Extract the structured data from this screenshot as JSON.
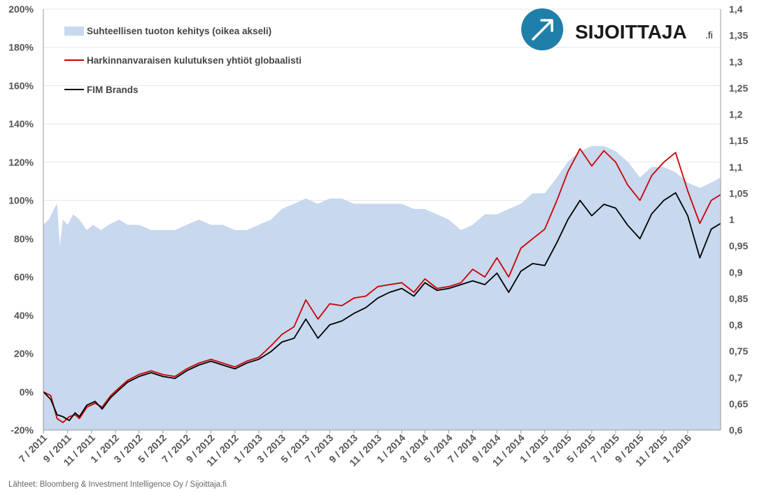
{
  "chart_data": {
    "type": "line",
    "title": "",
    "xlabel": "",
    "ylabel_left": "",
    "ylabel_right": "",
    "left_axis": {
      "min": -20,
      "max": 200,
      "step": 20,
      "tick_labels": [
        "-20%",
        "0%",
        "20%",
        "40%",
        "60%",
        "80%",
        "100%",
        "120%",
        "140%",
        "160%",
        "180%",
        "200%"
      ]
    },
    "right_axis": {
      "min": 0.6,
      "max": 1.4,
      "step": 0.05,
      "tick_labels": [
        "0,6",
        "0,65",
        "0,7",
        "0,75",
        "0,8",
        "0,85",
        "0,9",
        "0,95",
        "1",
        "1,05",
        "1,1",
        "1,15",
        "1,2",
        "1,25",
        "1,3",
        "1,35",
        "1,4"
      ]
    },
    "x_range": [
      "2011-07-01",
      "2016-03-25"
    ],
    "x_tick_labels": [
      "7 / 2011",
      "9 / 2011",
      "11 / 2011",
      "1 / 2012",
      "3 / 2012",
      "5 / 2012",
      "7 / 2012",
      "9 / 2012",
      "11 / 2012",
      "1 / 2013",
      "3 / 2013",
      "5 / 2013",
      "7 / 2013",
      "9 / 2013",
      "11 / 2013",
      "1 / 2014",
      "3 / 2014",
      "5 / 2014",
      "7 / 2014",
      "9 / 2014",
      "11 / 2014",
      "1 / 2015",
      "3 / 2015",
      "5 / 2015",
      "7 / 2015",
      "9 / 2015",
      "11 / 2015",
      "1 / 2016"
    ],
    "grid": true,
    "legend_position": "top-left",
    "series": [
      {
        "name": "Suhteellisen tuoton kehitys (oikea akseli)",
        "kind": "area",
        "axis": "right",
        "color": "#c8d8ee",
        "points": [
          [
            "2011-07-01",
            0.99
          ],
          [
            "2011-07-15",
            1.0
          ],
          [
            "2011-07-28",
            1.02
          ],
          [
            "2011-08-05",
            1.03
          ],
          [
            "2011-08-12",
            0.95
          ],
          [
            "2011-08-20",
            1.0
          ],
          [
            "2011-09-01",
            0.99
          ],
          [
            "2011-09-15",
            1.01
          ],
          [
            "2011-10-01",
            1.0
          ],
          [
            "2011-10-20",
            0.98
          ],
          [
            "2011-11-05",
            0.99
          ],
          [
            "2011-11-25",
            0.98
          ],
          [
            "2011-12-15",
            0.99
          ],
          [
            "2012-01-10",
            1.0
          ],
          [
            "2012-02-01",
            0.99
          ],
          [
            "2012-03-01",
            0.99
          ],
          [
            "2012-04-01",
            0.98
          ],
          [
            "2012-05-01",
            0.98
          ],
          [
            "2012-06-01",
            0.98
          ],
          [
            "2012-07-01",
            0.99
          ],
          [
            "2012-08-01",
            1.0
          ],
          [
            "2012-09-01",
            0.99
          ],
          [
            "2012-10-01",
            0.99
          ],
          [
            "2012-11-01",
            0.98
          ],
          [
            "2012-12-01",
            0.98
          ],
          [
            "2013-01-01",
            0.99
          ],
          [
            "2013-02-01",
            1.0
          ],
          [
            "2013-03-01",
            1.02
          ],
          [
            "2013-04-01",
            1.03
          ],
          [
            "2013-05-01",
            1.04
          ],
          [
            "2013-06-01",
            1.03
          ],
          [
            "2013-07-01",
            1.04
          ],
          [
            "2013-08-01",
            1.04
          ],
          [
            "2013-09-01",
            1.03
          ],
          [
            "2013-10-01",
            1.03
          ],
          [
            "2013-11-01",
            1.03
          ],
          [
            "2013-12-01",
            1.03
          ],
          [
            "2014-01-01",
            1.03
          ],
          [
            "2014-02-01",
            1.02
          ],
          [
            "2014-03-01",
            1.02
          ],
          [
            "2014-04-01",
            1.01
          ],
          [
            "2014-05-01",
            1.0
          ],
          [
            "2014-06-01",
            0.98
          ],
          [
            "2014-07-01",
            0.99
          ],
          [
            "2014-08-01",
            1.01
          ],
          [
            "2014-09-01",
            1.01
          ],
          [
            "2014-10-01",
            1.02
          ],
          [
            "2014-11-01",
            1.03
          ],
          [
            "2014-12-01",
            1.05
          ],
          [
            "2015-01-01",
            1.05
          ],
          [
            "2015-02-01",
            1.08
          ],
          [
            "2015-03-01",
            1.11
          ],
          [
            "2015-04-01",
            1.13
          ],
          [
            "2015-05-01",
            1.14
          ],
          [
            "2015-06-01",
            1.14
          ],
          [
            "2015-07-01",
            1.13
          ],
          [
            "2015-08-01",
            1.11
          ],
          [
            "2015-09-01",
            1.08
          ],
          [
            "2015-10-01",
            1.1
          ],
          [
            "2015-11-01",
            1.1
          ],
          [
            "2015-12-01",
            1.09
          ],
          [
            "2016-01-01",
            1.07
          ],
          [
            "2016-02-01",
            1.06
          ],
          [
            "2016-03-01",
            1.07
          ],
          [
            "2016-03-25",
            1.08
          ]
        ]
      },
      {
        "name": "Harkinnanvaraisen kulutuksen yhtiöt globaalisti",
        "kind": "line",
        "axis": "left",
        "color": "#cc0000",
        "points": [
          [
            "2011-07-01",
            0
          ],
          [
            "2011-07-20",
            -2
          ],
          [
            "2011-08-05",
            -14
          ],
          [
            "2011-08-20",
            -16
          ],
          [
            "2011-09-05",
            -13
          ],
          [
            "2011-09-20",
            -12
          ],
          [
            "2011-10-01",
            -14
          ],
          [
            "2011-10-20",
            -8
          ],
          [
            "2011-11-10",
            -6
          ],
          [
            "2011-11-28",
            -8
          ],
          [
            "2011-12-20",
            -2
          ],
          [
            "2012-01-10",
            2
          ],
          [
            "2012-02-01",
            6
          ],
          [
            "2012-03-01",
            9
          ],
          [
            "2012-04-01",
            11
          ],
          [
            "2012-05-01",
            9
          ],
          [
            "2012-06-01",
            8
          ],
          [
            "2012-07-01",
            12
          ],
          [
            "2012-08-01",
            15
          ],
          [
            "2012-09-01",
            17
          ],
          [
            "2012-10-01",
            15
          ],
          [
            "2012-11-01",
            13
          ],
          [
            "2012-12-01",
            16
          ],
          [
            "2013-01-01",
            18
          ],
          [
            "2013-02-01",
            24
          ],
          [
            "2013-03-01",
            30
          ],
          [
            "2013-04-01",
            34
          ],
          [
            "2013-05-01",
            48
          ],
          [
            "2013-06-01",
            38
          ],
          [
            "2013-07-01",
            46
          ],
          [
            "2013-08-01",
            45
          ],
          [
            "2013-09-01",
            49
          ],
          [
            "2013-10-01",
            50
          ],
          [
            "2013-11-01",
            55
          ],
          [
            "2013-12-01",
            56
          ],
          [
            "2014-01-01",
            57
          ],
          [
            "2014-02-01",
            52
          ],
          [
            "2014-03-01",
            59
          ],
          [
            "2014-04-01",
            54
          ],
          [
            "2014-05-01",
            55
          ],
          [
            "2014-06-01",
            57
          ],
          [
            "2014-07-01",
            64
          ],
          [
            "2014-08-01",
            60
          ],
          [
            "2014-09-01",
            70
          ],
          [
            "2014-10-01",
            60
          ],
          [
            "2014-11-01",
            75
          ],
          [
            "2014-12-01",
            80
          ],
          [
            "2015-01-01",
            85
          ],
          [
            "2015-02-01",
            100
          ],
          [
            "2015-03-01",
            115
          ],
          [
            "2015-04-01",
            127
          ],
          [
            "2015-05-01",
            118
          ],
          [
            "2015-06-01",
            126
          ],
          [
            "2015-07-01",
            120
          ],
          [
            "2015-08-01",
            108
          ],
          [
            "2015-09-01",
            100
          ],
          [
            "2015-10-01",
            113
          ],
          [
            "2015-11-01",
            120
          ],
          [
            "2015-12-01",
            125
          ],
          [
            "2016-01-01",
            105
          ],
          [
            "2016-02-01",
            88
          ],
          [
            "2016-03-01",
            100
          ],
          [
            "2016-03-25",
            103
          ]
        ]
      },
      {
        "name": "FIM Brands",
        "kind": "line",
        "axis": "left",
        "color": "#000000",
        "points": [
          [
            "2011-07-01",
            0
          ],
          [
            "2011-07-20",
            -4
          ],
          [
            "2011-08-05",
            -12
          ],
          [
            "2011-08-20",
            -13
          ],
          [
            "2011-09-05",
            -15
          ],
          [
            "2011-09-20",
            -11
          ],
          [
            "2011-10-01",
            -13
          ],
          [
            "2011-10-20",
            -7
          ],
          [
            "2011-11-10",
            -5
          ],
          [
            "2011-11-28",
            -9
          ],
          [
            "2011-12-20",
            -3
          ],
          [
            "2012-01-10",
            1
          ],
          [
            "2012-02-01",
            5
          ],
          [
            "2012-03-01",
            8
          ],
          [
            "2012-04-01",
            10
          ],
          [
            "2012-05-01",
            8
          ],
          [
            "2012-06-01",
            7
          ],
          [
            "2012-07-01",
            11
          ],
          [
            "2012-08-01",
            14
          ],
          [
            "2012-09-01",
            16
          ],
          [
            "2012-10-01",
            14
          ],
          [
            "2012-11-01",
            12
          ],
          [
            "2012-12-01",
            15
          ],
          [
            "2013-01-01",
            17
          ],
          [
            "2013-02-01",
            21
          ],
          [
            "2013-03-01",
            26
          ],
          [
            "2013-04-01",
            28
          ],
          [
            "2013-05-01",
            38
          ],
          [
            "2013-06-01",
            28
          ],
          [
            "2013-07-01",
            35
          ],
          [
            "2013-08-01",
            37
          ],
          [
            "2013-09-01",
            41
          ],
          [
            "2013-10-01",
            44
          ],
          [
            "2013-11-01",
            49
          ],
          [
            "2013-12-01",
            52
          ],
          [
            "2014-01-01",
            54
          ],
          [
            "2014-02-01",
            50
          ],
          [
            "2014-03-01",
            57
          ],
          [
            "2014-04-01",
            53
          ],
          [
            "2014-05-01",
            54
          ],
          [
            "2014-06-01",
            56
          ],
          [
            "2014-07-01",
            58
          ],
          [
            "2014-08-01",
            56
          ],
          [
            "2014-09-01",
            62
          ],
          [
            "2014-10-01",
            52
          ],
          [
            "2014-11-01",
            63
          ],
          [
            "2014-12-01",
            67
          ],
          [
            "2015-01-01",
            66
          ],
          [
            "2015-02-01",
            78
          ],
          [
            "2015-03-01",
            90
          ],
          [
            "2015-04-01",
            100
          ],
          [
            "2015-05-01",
            92
          ],
          [
            "2015-06-01",
            98
          ],
          [
            "2015-07-01",
            96
          ],
          [
            "2015-08-01",
            87
          ],
          [
            "2015-09-01",
            80
          ],
          [
            "2015-10-01",
            93
          ],
          [
            "2015-11-01",
            100
          ],
          [
            "2015-12-01",
            104
          ],
          [
            "2016-01-01",
            92
          ],
          [
            "2016-02-01",
            70
          ],
          [
            "2016-03-01",
            85
          ],
          [
            "2016-03-25",
            88
          ]
        ]
      }
    ]
  },
  "logo": {
    "text": "SIJOITTAJA",
    "suffix": ".fi",
    "icon": "arrow-up-right-circle-icon",
    "color": "#1f7fa8"
  },
  "source": "Lähteet: Bloomberg & Investment Intelligence Oy / Sijoittaja.fi"
}
